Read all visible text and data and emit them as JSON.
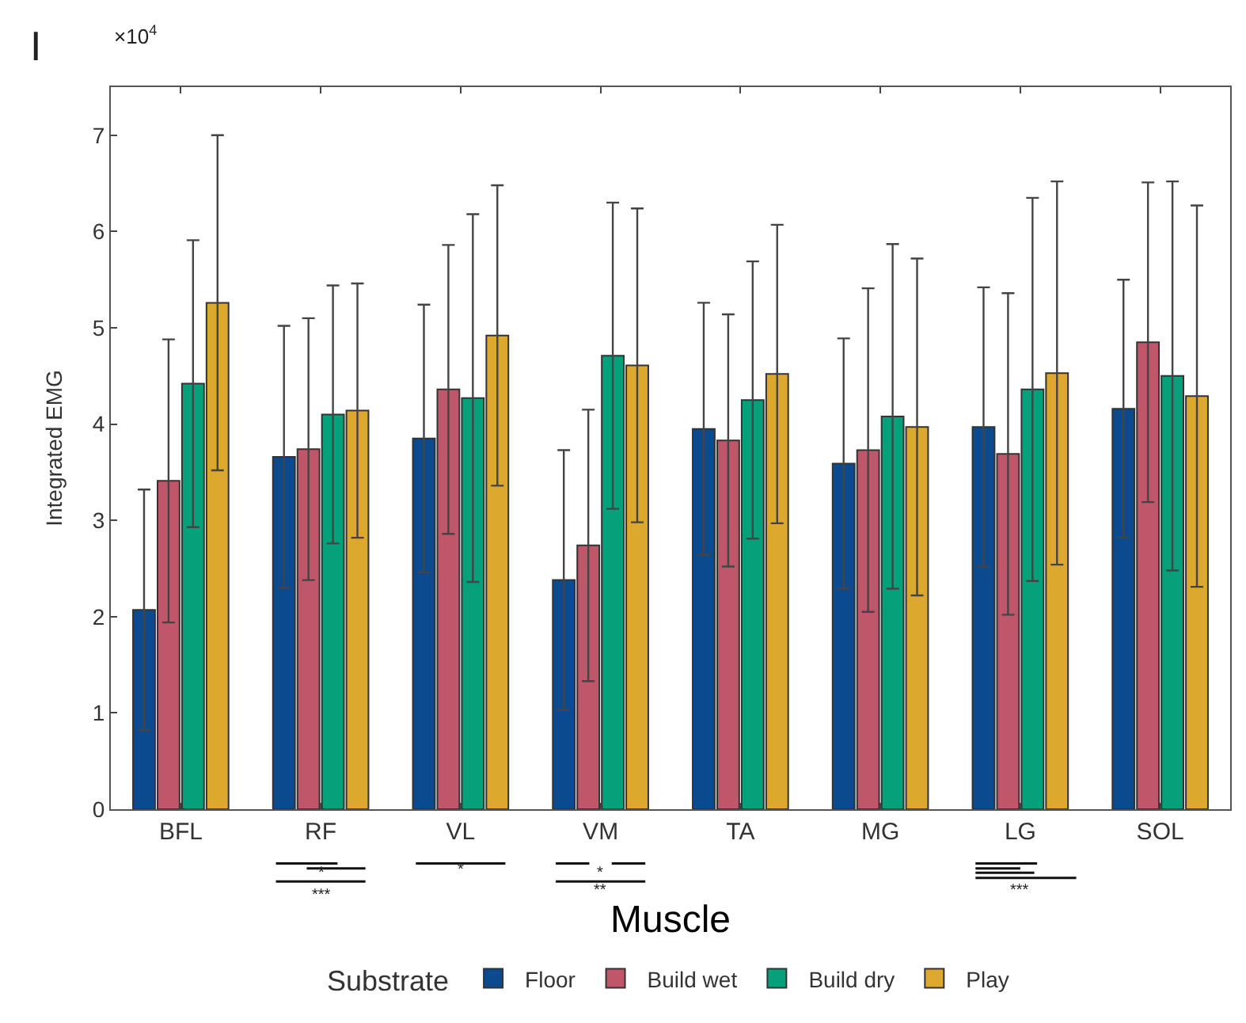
{
  "chart_data": {
    "type": "bar",
    "xlabel": "Muscle",
    "ylabel": "Integrated EMG",
    "legend_title": "Substrate",
    "categories": [
      "BFL",
      "RF",
      "VL",
      "VM",
      "TA",
      "MG",
      "LG",
      "SOL"
    ],
    "series": [
      {
        "name": "Floor",
        "color": "#0b4a8f",
        "values": [
          2.07,
          3.66,
          3.85,
          2.38,
          3.95,
          3.59,
          3.97,
          4.16
        ],
        "errors": [
          1.25,
          1.36,
          1.39,
          1.35,
          1.31,
          1.3,
          1.45,
          1.34
        ]
      },
      {
        "name": "Build wet",
        "color": "#c0566a",
        "values": [
          3.41,
          3.74,
          4.36,
          2.74,
          3.83,
          3.73,
          3.69,
          4.85
        ],
        "errors": [
          1.47,
          1.36,
          1.5,
          1.41,
          1.31,
          1.68,
          1.67,
          1.66
        ]
      },
      {
        "name": "Build dry",
        "color": "#06a07a",
        "values": [
          4.42,
          4.1,
          4.27,
          4.71,
          4.25,
          4.08,
          4.36,
          4.5
        ],
        "errors": [
          1.49,
          1.34,
          1.91,
          1.59,
          1.44,
          1.79,
          1.99,
          2.02
        ]
      },
      {
        "name": "Play",
        "color": "#dca82e",
        "values": [
          5.26,
          4.14,
          4.92,
          4.61,
          4.52,
          3.97,
          4.53,
          4.29
        ],
        "errors": [
          1.74,
          1.32,
          1.56,
          1.63,
          1.55,
          1.75,
          1.99,
          1.98
        ]
      }
    ],
    "ylim": [
      0,
      7.5
    ],
    "yticks": [
      0,
      1,
      2,
      3,
      4,
      5,
      6,
      7
    ],
    "legend": "bottom",
    "annotations": [
      "I",
      "×10$^{4}$",
      "*",
      "***",
      "*",
      "*",
      "**",
      "***"
    ]
  }
}
